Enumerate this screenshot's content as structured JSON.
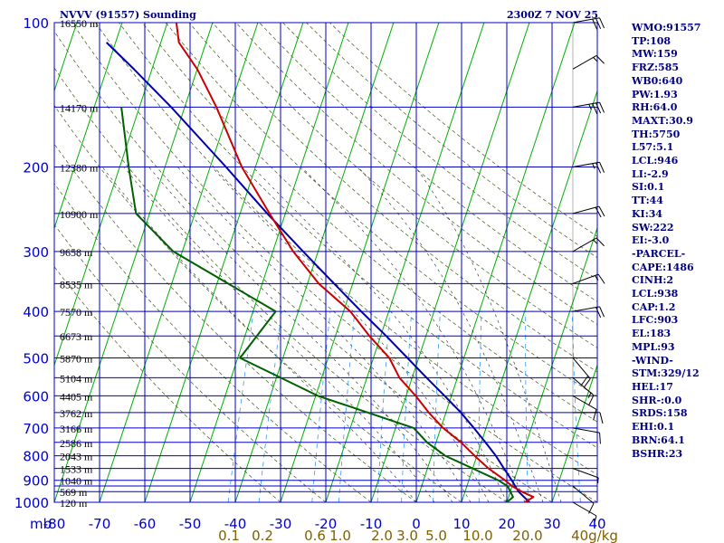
{
  "header": {
    "station": "NVVV (91557) Sounding",
    "time": "2300Z  7 NOV 25"
  },
  "indices": [
    "WMO:91557",
    "TP:108",
    "MW:159",
    "FRZ:585",
    "WB0:640",
    "PW:1.93",
    "RH:64.0",
    "MAXT:30.9",
    "TH:5750",
    "L57:5.1",
    "LCL:946",
    "LI:-2.9",
    "SI:0.1",
    "TT:44",
    "KI:34",
    "SW:222",
    "EI:-3.0",
    "-PARCEL-",
    "CAPE:1486",
    "CINH:2",
    "LCL:938",
    "CAP:1.2",
    "LFC:903",
    "EL:183",
    "MPL:93",
    "-WIND-",
    "STM:329/12",
    "HEL:17",
    "SHR-:0.0",
    "SRDS:158",
    "EHI:0.1",
    "BRN:64.1",
    "BSHR:23"
  ],
  "colors": {
    "background": "#ffffff",
    "isobar": "#0000c8",
    "isotherm": "#00b000",
    "dry_adiabat": "#556b2f",
    "moist_adiabat": "#000000",
    "mixing_ratio": "#3399ff",
    "temperature": "#cc0000",
    "dewpoint": "#006000",
    "parcel": "#0000aa",
    "axis_text": "#000080",
    "pressure_label": "#0000cc",
    "mixing_label": "#806000",
    "wind_barb": "#000000"
  },
  "chart_data": {
    "type": "skew-t",
    "title": "NVVV (91557) Sounding",
    "x_unit_label": "mb",
    "temperature_ticks": [
      -80,
      -70,
      -60,
      -50,
      -40,
      -30,
      -20,
      -10,
      0,
      10,
      20,
      30,
      40
    ],
    "pressure_levels": [
      100,
      150,
      200,
      250,
      300,
      350,
      400,
      450,
      500,
      550,
      600,
      650,
      700,
      750,
      800,
      850,
      900,
      925,
      950,
      1000
    ],
    "pressure_labels": [
      100,
      200,
      300,
      400,
      500,
      600,
      700,
      800,
      900,
      1000
    ],
    "height_labels": [
      {
        "p": 100,
        "text": "16550 m"
      },
      {
        "p": 150,
        "text": "14170 m"
      },
      {
        "p": 200,
        "text": "12380 m"
      },
      {
        "p": 250,
        "text": "10900 m"
      },
      {
        "p": 300,
        "text": "9658 m"
      },
      {
        "p": 350,
        "text": "8535 m"
      },
      {
        "p": 400,
        "text": "7570 m"
      },
      {
        "p": 450,
        "text": "6673 m"
      },
      {
        "p": 500,
        "text": "5870 m"
      },
      {
        "p": 550,
        "text": "5104 m"
      },
      {
        "p": 600,
        "text": "4405 m"
      },
      {
        "p": 650,
        "text": "3762 m"
      },
      {
        "p": 700,
        "text": "3166 m"
      },
      {
        "p": 750,
        "text": "2586 m"
      },
      {
        "p": 800,
        "text": "2043 m"
      },
      {
        "p": 850,
        "text": "1533 m"
      },
      {
        "p": 900,
        "text": "1040 m"
      },
      {
        "p": 950,
        "text": "569 m"
      },
      {
        "p": 1000,
        "text": "120 m"
      }
    ],
    "mixing_ratio_labels": [
      "0.1",
      "0.2",
      "0.6",
      "1.0",
      "2.0",
      "3.0",
      "5.0",
      "10.0",
      "20.0",
      "40g/kg"
    ],
    "temperature_profile": [
      {
        "p": 1000,
        "t": 24
      },
      {
        "p": 975,
        "t": 25.5
      },
      {
        "p": 950,
        "t": 22.5
      },
      {
        "p": 925,
        "t": 20
      },
      {
        "p": 900,
        "t": 18
      },
      {
        "p": 850,
        "t": 13.5
      },
      {
        "p": 800,
        "t": 9.5
      },
      {
        "p": 750,
        "t": 5.5
      },
      {
        "p": 700,
        "t": 0.5
      },
      {
        "p": 650,
        "t": -3.8
      },
      {
        "p": 600,
        "t": -7.9
      },
      {
        "p": 550,
        "t": -12.8
      },
      {
        "p": 500,
        "t": -16.5
      },
      {
        "p": 450,
        "t": -22.5
      },
      {
        "p": 400,
        "t": -28.5
      },
      {
        "p": 350,
        "t": -37.5
      },
      {
        "p": 300,
        "t": -45.5
      },
      {
        "p": 250,
        "t": -53.5
      },
      {
        "p": 200,
        "t": -63
      },
      {
        "p": 150,
        "t": -73
      },
      {
        "p": 125,
        "t": -80
      },
      {
        "p": 110,
        "t": -86
      },
      {
        "p": 100,
        "t": -88
      }
    ],
    "dewpoint_profile": [
      {
        "p": 1000,
        "td": 20
      },
      {
        "p": 975,
        "td": 21
      },
      {
        "p": 950,
        "td": 20
      },
      {
        "p": 925,
        "td": 19
      },
      {
        "p": 900,
        "td": 16.5
      },
      {
        "p": 850,
        "td": 10
      },
      {
        "p": 800,
        "td": 3
      },
      {
        "p": 750,
        "td": -2
      },
      {
        "p": 700,
        "td": -6
      },
      {
        "p": 600,
        "td": -29.5
      },
      {
        "p": 500,
        "td": -49.5
      },
      {
        "p": 400,
        "td": -45
      },
      {
        "p": 300,
        "td": -72
      },
      {
        "p": 250,
        "td": -83
      },
      {
        "p": 200,
        "td": -88
      },
      {
        "p": 150,
        "td": -94
      }
    ],
    "parcel_profile": [
      {
        "p": 1000,
        "t": 25
      },
      {
        "p": 950,
        "t": 21.8
      },
      {
        "p": 900,
        "t": 19.5
      },
      {
        "p": 850,
        "t": 16.9
      },
      {
        "p": 800,
        "t": 14.2
      },
      {
        "p": 750,
        "t": 10.9
      },
      {
        "p": 700,
        "t": 7.3
      },
      {
        "p": 650,
        "t": 3.3
      },
      {
        "p": 600,
        "t": -1.5
      },
      {
        "p": 550,
        "t": -6.8
      },
      {
        "p": 500,
        "t": -12.5
      },
      {
        "p": 450,
        "t": -18.8
      },
      {
        "p": 400,
        "t": -26.1
      },
      {
        "p": 350,
        "t": -34.1
      },
      {
        "p": 300,
        "t": -43.3
      },
      {
        "p": 250,
        "t": -54
      },
      {
        "p": 200,
        "t": -66.5
      },
      {
        "p": 150,
        "t": -83
      },
      {
        "p": 125,
        "t": -94
      },
      {
        "p": 110,
        "t": -102
      }
    ],
    "wind_barbs": [
      {
        "p": 1000,
        "dir": 120,
        "spd": 5
      },
      {
        "p": 925,
        "dir": 130,
        "spd": 10
      },
      {
        "p": 850,
        "dir": 110,
        "spd": 5
      },
      {
        "p": 700,
        "dir": 100,
        "spd": 10
      },
      {
        "p": 650,
        "dir": 90,
        "spd": 10
      },
      {
        "p": 600,
        "dir": 120,
        "spd": 10
      },
      {
        "p": 550,
        "dir": 130,
        "spd": 15
      },
      {
        "p": 500,
        "dir": 140,
        "spd": 20
      },
      {
        "p": 400,
        "dir": 80,
        "spd": 20
      },
      {
        "p": 350,
        "dir": 70,
        "spd": 15
      },
      {
        "p": 300,
        "dir": 60,
        "spd": 15
      },
      {
        "p": 250,
        "dir": 75,
        "spd": 20
      },
      {
        "p": 200,
        "dir": 80,
        "spd": 25
      },
      {
        "p": 150,
        "dir": 80,
        "spd": 35
      },
      {
        "p": 125,
        "dir": 60,
        "spd": 15
      },
      {
        "p": 100,
        "dir": 80,
        "spd": 30
      }
    ]
  }
}
